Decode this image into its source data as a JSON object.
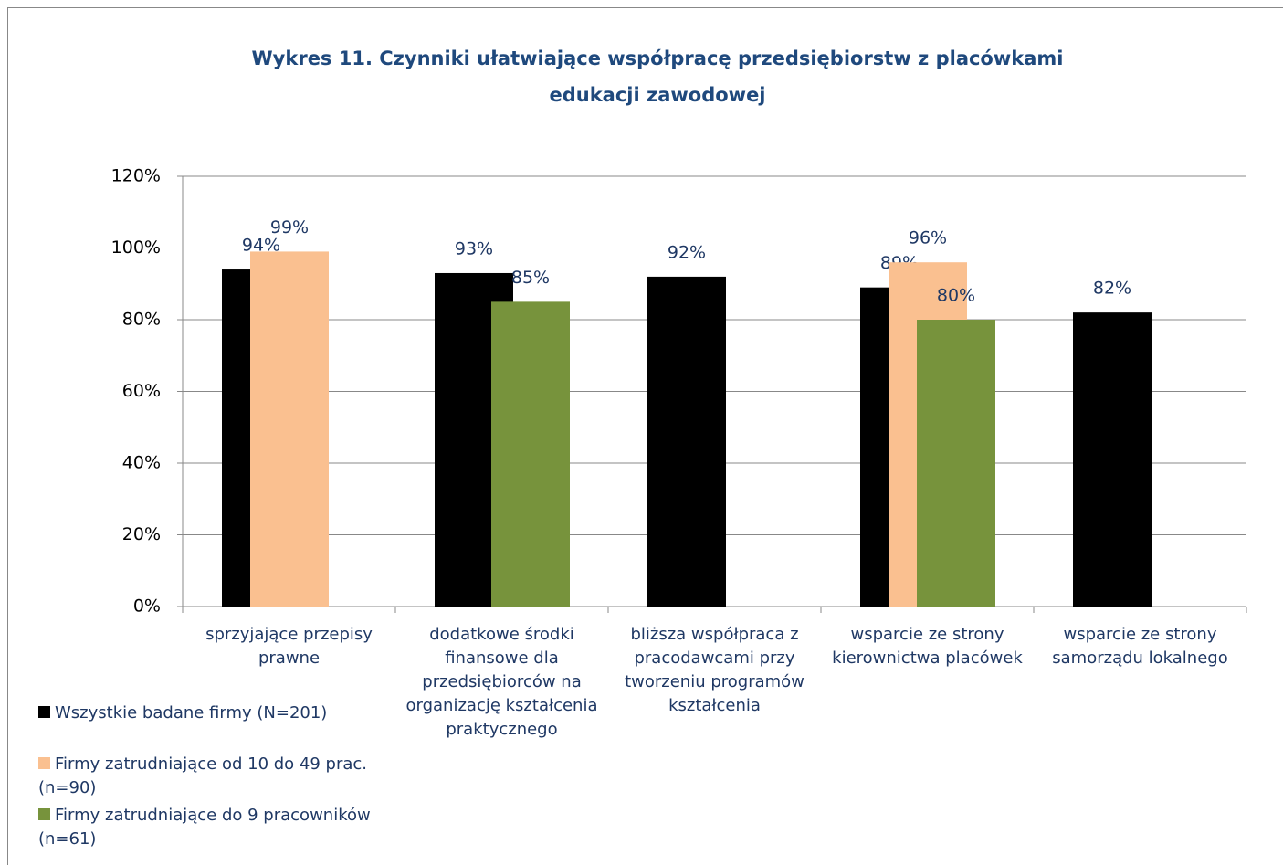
{
  "chart_data": {
    "type": "bar",
    "title": "Wykres 11. Czynniki ułatwiające współpracę przedsiębiorstw z placówkami edukacji zawodowej",
    "categories": [
      "sprzyjające przepisy prawne",
      "dodatkowe środki finansowe dla przedsiębiorców na organizację kształcenia praktycznego",
      "bliższa współpraca z pracodawcami przy tworzeniu programów kształcenia",
      "wsparcie ze strony kierownictwa placówek",
      "wsparcie ze strony samorządu lokalnego"
    ],
    "series": [
      {
        "name": "Wszystkie badane firmy (N=201)",
        "color": "#000000",
        "values": [
          94,
          93,
          92,
          89,
          82
        ],
        "value_labels": [
          "94%",
          "93%",
          "92%",
          "89%",
          "82%"
        ]
      },
      {
        "name": "Firmy zatrudniające od 10 do 49 prac. (n=90)",
        "color": "#fac090",
        "values": [
          99,
          null,
          null,
          96,
          null
        ],
        "value_labels": [
          "99%",
          null,
          null,
          "96%",
          null
        ]
      },
      {
        "name": "Firmy zatrudniające do 9 pracowników (n=61)",
        "color": "#77933c",
        "values": [
          null,
          85,
          null,
          80,
          null
        ],
        "value_labels": [
          null,
          "85%",
          null,
          "80%",
          null
        ]
      }
    ],
    "ylim": [
      0,
      120
    ],
    "yticks": [
      {
        "value": 0,
        "label": "0%"
      },
      {
        "value": 20,
        "label": "20%"
      },
      {
        "value": 40,
        "label": "40%"
      },
      {
        "value": 60,
        "label": "60%"
      },
      {
        "value": 80,
        "label": "80%"
      },
      {
        "value": 100,
        "label": "100%"
      },
      {
        "value": 120,
        "label": "120%"
      }
    ],
    "grid": true,
    "legend": "bottom-left"
  }
}
